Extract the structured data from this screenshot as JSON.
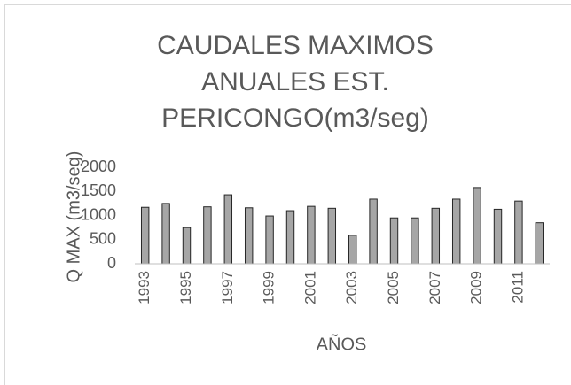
{
  "chart_data": {
    "type": "bar",
    "title": [
      "CAUDALES MAXIMOS",
      "ANUALES EST.",
      "PERICONGO(m3/seg)"
    ],
    "x_label": "AÑOS",
    "y_label": "Q MAX (m3/seg)",
    "categories": [
      "1993",
      null,
      "1995",
      null,
      "1997",
      null,
      "1999",
      null,
      "2001",
      null,
      "2003",
      null,
      "2005",
      null,
      "2007",
      null,
      "2009",
      null,
      "2011",
      null
    ],
    "values": [
      1170,
      1250,
      750,
      1180,
      1430,
      1160,
      990,
      1100,
      1190,
      1150,
      590,
      1340,
      950,
      950,
      1150,
      1340,
      1580,
      1130,
      1300,
      850
    ],
    "color": "#a6a6a6",
    "edge_color": "#262626",
    "ylim": [
      0,
      2000
    ],
    "yticks": [
      0,
      500,
      1000,
      1500,
      2000
    ],
    "grid": false
  }
}
